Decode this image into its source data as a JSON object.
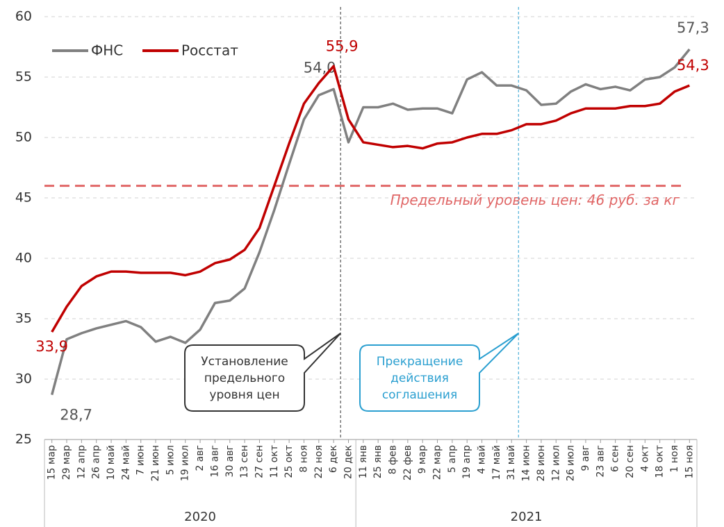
{
  "chart_data": {
    "type": "line",
    "categories": [
      "15 мар",
      "29 мар",
      "12 апр",
      "26 апр",
      "10 май",
      "24 май",
      "7 июн",
      "21 июн",
      "5 июл",
      "19 июл",
      "2 авг",
      "16 авг",
      "30 авг",
      "13 сен",
      "27 сен",
      "11 окт",
      "25 окт",
      "8 ноя",
      "22 ноя",
      "6 дек",
      "20 дек",
      "11 янв",
      "25 янв",
      "8 фев",
      "22 фев",
      "9 мар",
      "22 мар",
      "5 апр",
      "19 апр",
      "4 май",
      "17 май",
      "31 май",
      "14 июн",
      "28 июн",
      "12 июл",
      "26 июл",
      "9 авг",
      "23 авг",
      "6 сен",
      "20 сен",
      "4 окт",
      "18 окт",
      "1 ноя",
      "15 ноя"
    ],
    "groups": [
      {
        "label": "2020",
        "from": "15 мар",
        "to": "20 дек"
      },
      {
        "label": "2021",
        "from": "11 янв",
        "to": "15 ноя"
      }
    ],
    "series": [
      {
        "name": "ФНС",
        "color": "#808080",
        "values": [
          28.7,
          33.3,
          33.8,
          34.2,
          34.5,
          34.8,
          34.3,
          33.1,
          33.5,
          33.0,
          34.1,
          36.3,
          36.5,
          37.5,
          40.5,
          44.0,
          47.8,
          51.5,
          53.5,
          54.0,
          49.6,
          52.5,
          52.5,
          52.8,
          52.3,
          52.4,
          52.4,
          52.0,
          54.8,
          55.4,
          54.3,
          54.3,
          53.9,
          52.7,
          52.8,
          53.8,
          54.4,
          54.0,
          54.2,
          53.9,
          54.8,
          55.0,
          55.8,
          57.3
        ],
        "value_labels": [
          "28,7",
          null,
          null,
          null,
          null,
          null,
          null,
          null,
          null,
          null,
          null,
          null,
          null,
          null,
          null,
          null,
          null,
          null,
          null,
          "54,0",
          null,
          null,
          null,
          null,
          null,
          null,
          null,
          null,
          null,
          null,
          null,
          null,
          null,
          null,
          null,
          null,
          null,
          null,
          null,
          null,
          null,
          null,
          null,
          "57,3"
        ]
      },
      {
        "name": "Росстат",
        "color": "#c00000",
        "values": [
          33.9,
          36.0,
          37.7,
          38.5,
          38.9,
          38.9,
          38.8,
          38.8,
          38.8,
          38.6,
          38.9,
          39.6,
          39.9,
          40.7,
          42.5,
          46.0,
          49.5,
          52.8,
          54.5,
          55.9,
          51.5,
          49.6,
          49.4,
          49.2,
          49.3,
          49.1,
          49.5,
          49.6,
          50.0,
          50.3,
          50.3,
          50.6,
          51.1,
          51.1,
          51.4,
          52.0,
          52.4,
          52.4,
          52.4,
          52.6,
          52.6,
          52.8,
          53.8,
          54.3
        ],
        "value_labels": [
          "33,9",
          null,
          null,
          null,
          null,
          null,
          null,
          null,
          null,
          null,
          null,
          null,
          null,
          null,
          null,
          null,
          null,
          null,
          null,
          "55,9",
          null,
          null,
          null,
          null,
          null,
          null,
          null,
          null,
          null,
          null,
          null,
          null,
          null,
          null,
          null,
          null,
          null,
          null,
          null,
          null,
          null,
          null,
          null,
          "54,3"
        ]
      }
    ],
    "ylim": [
      25,
      60
    ],
    "yticks": [
      25,
      30,
      35,
      40,
      45,
      50,
      55,
      60
    ],
    "grid": true,
    "legend": "top-left",
    "hline": {
      "value": 46,
      "label": "Предельный уровень цен: 46 руб. за кг",
      "color": "#e06666"
    },
    "vlines": [
      {
        "category": "6 дек",
        "color": "#333333",
        "label": [
          "Установление",
          "предельного",
          "уровня цен"
        ]
      },
      {
        "category": "31 май",
        "color": "#2a9fd0",
        "label": [
          "Прекращение",
          "действия",
          "соглашения"
        ]
      }
    ]
  }
}
